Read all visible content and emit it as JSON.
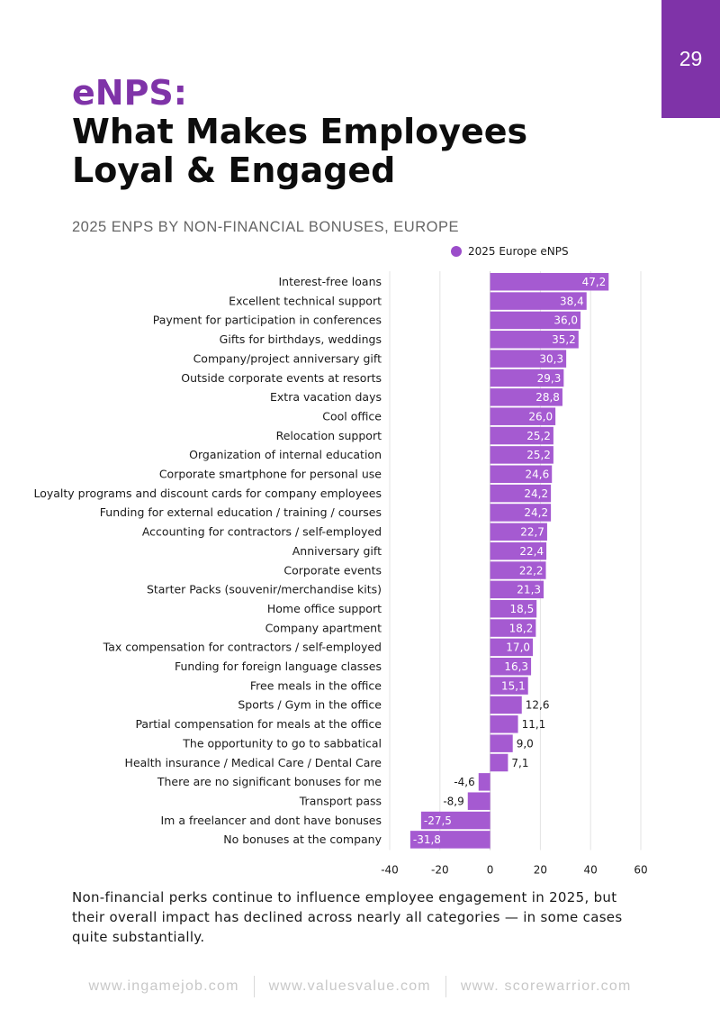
{
  "page": {
    "number": "29"
  },
  "header": {
    "accent_title": "eNPS:",
    "title_line1": "What Makes Employees",
    "title_line2": "Loyal & Engaged"
  },
  "subtitle": "2025 ENPS BY NON-FINANCIAL BONUSES, EUROPE",
  "colors": {
    "accent": "#7f33a8",
    "bar": "#a55ad1",
    "legend_dot": "#9b4dca"
  },
  "chart_data": {
    "type": "bar",
    "orientation": "horizontal",
    "legend": "2025 Europe eNPS",
    "categories": [
      "Interest-free loans",
      "Excellent technical support",
      "Payment for participation in conferences",
      "Gifts for birthdays, weddings",
      "Company/project anniversary gift",
      "Outside corporate events at resorts",
      "Extra vacation days",
      "Cool office",
      "Relocation support",
      "Organization of internal education",
      "Corporate smartphone for personal use",
      "Loyalty programs and discount cards for company employees",
      "Funding for external education / training / courses",
      "Accounting for contractors / self-employed",
      "Anniversary gift",
      "Corporate events",
      "Starter Packs (souvenir/merchandise kits)",
      "Home office support",
      "Company apartment",
      "Tax compensation for contractors / self-employed",
      "Funding for foreign language classes",
      "Free meals in the office",
      "Sports / Gym in the office",
      "Partial compensation for meals at the office",
      "The opportunity to go to sabbatical",
      "Health insurance / Medical Care / Dental Care",
      "There are no significant bonuses for me",
      "Transport pass",
      "Im a freelancer and dont have bonuses",
      "No bonuses at the company"
    ],
    "values": [
      47.2,
      38.4,
      36.0,
      35.2,
      30.3,
      29.3,
      28.8,
      26.0,
      25.2,
      25.2,
      24.6,
      24.2,
      24.2,
      22.7,
      22.4,
      22.2,
      21.3,
      18.5,
      18.2,
      17.0,
      16.3,
      15.1,
      12.6,
      11.1,
      9.0,
      7.1,
      -4.6,
      -8.9,
      -27.5,
      -31.8
    ],
    "value_labels": [
      "47,2",
      "38,4",
      "36,0",
      "35,2",
      "30,3",
      "29,3",
      "28,8",
      "26,0",
      "25,2",
      "25,2",
      "24,6",
      "24,2",
      "24,2",
      "22,7",
      "22,4",
      "22,2",
      "21,3",
      "18,5",
      "18,2",
      "17,0",
      "16,3",
      "15,1",
      "12,6",
      "11,1",
      "9,0",
      "7,1",
      "-4,6",
      "-8,9",
      "-27,5",
      "-31,8"
    ],
    "xlim": [
      -40,
      60
    ],
    "xticks": [
      -40,
      -20,
      0,
      20,
      40,
      60
    ],
    "grid": true
  },
  "summary": "Non-financial perks continue to influence employee engagement in 2025, but their overall impact has declined across nearly all categories — in some cases quite substantially.",
  "footer": {
    "links": [
      "www.ingamejob.com",
      "www.valuesvalue.com",
      "www. scorewarrior.com"
    ]
  }
}
